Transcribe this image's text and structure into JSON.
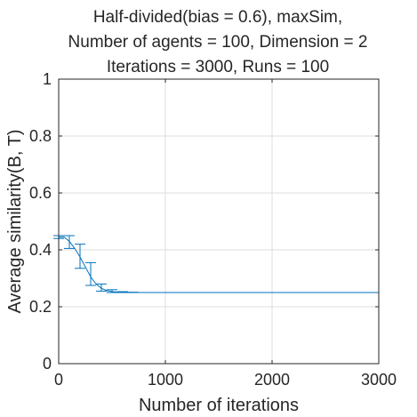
{
  "chart_data": {
    "type": "line",
    "title_lines": [
      "Half-divided(bias = 0.6), maxSim,",
      "Number of agents = 100, Dimension = 2",
      "Iterations = 3000, Runs = 100"
    ],
    "xlabel": "Number of iterations",
    "ylabel": "Average similarity(B, T)",
    "xlim": [
      0,
      3000
    ],
    "ylim": [
      0,
      1
    ],
    "xticks": [
      0,
      1000,
      2000,
      3000
    ],
    "xtick_labels": [
      "0",
      "1000",
      "2000",
      "3000"
    ],
    "yticks": [
      0,
      0.2,
      0.4,
      0.6,
      0.8,
      1
    ],
    "ytick_labels": [
      "0",
      "0.2",
      "0.4",
      "0.6",
      "0.8",
      "1"
    ],
    "grid": true,
    "series": [
      {
        "color": "#0072BD",
        "x": [
          0,
          50,
          100,
          150,
          200,
          250,
          300,
          350,
          400,
          450,
          500,
          600,
          700,
          800,
          900,
          1000,
          1500,
          2000,
          2500,
          3000
        ],
        "y": [
          0.445,
          0.445,
          0.43,
          0.405,
          0.375,
          0.34,
          0.305,
          0.28,
          0.265,
          0.257,
          0.253,
          0.251,
          0.25,
          0.25,
          0.25,
          0.25,
          0.25,
          0.25,
          0.25,
          0.25
        ],
        "error_bars": [
          {
            "x": 0,
            "low": 0.44,
            "high": 0.45
          },
          {
            "x": 100,
            "low": 0.405,
            "high": 0.45
          },
          {
            "x": 200,
            "low": 0.335,
            "high": 0.42
          },
          {
            "x": 300,
            "low": 0.275,
            "high": 0.355
          },
          {
            "x": 400,
            "low": 0.255,
            "high": 0.28
          },
          {
            "x": 500,
            "low": 0.25,
            "high": 0.26
          },
          {
            "x": 600,
            "low": 0.25,
            "high": 0.253
          },
          {
            "x": 700,
            "low": 0.25,
            "high": 0.251
          },
          {
            "x": 800,
            "low": 0.25,
            "high": 0.25
          }
        ]
      }
    ]
  }
}
